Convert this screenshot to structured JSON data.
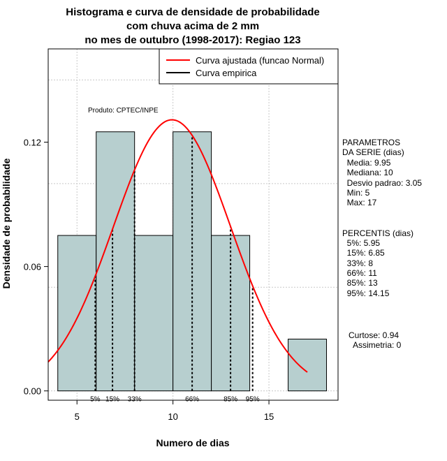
{
  "chart_data": {
    "type": "histogram",
    "title_lines": [
      "Histograma e curva de densidade de probabilidade",
      "com chuva acima de 2 mm",
      "no mes de outubro (1998-2017): Regiao 123"
    ],
    "xlabel": "Numero de dias",
    "ylabel": "Densidade de probabilidade",
    "xlim": [
      3.5,
      18.6
    ],
    "ylim": [
      -0.0045,
      0.165
    ],
    "x_ticks": [
      5,
      10,
      15
    ],
    "y_ticks": [
      0.0,
      0.06,
      0.12
    ],
    "y_tick_labels": [
      "0.00",
      "0.06",
      "0.12"
    ],
    "grid_x": [
      5,
      10,
      15
    ],
    "grid_y": [
      0.0,
      0.05,
      0.1,
      0.15
    ],
    "bins": [
      {
        "x0": 4,
        "x1": 6,
        "density": 0.075
      },
      {
        "x0": 6,
        "x1": 8,
        "density": 0.125
      },
      {
        "x0": 8,
        "x1": 10,
        "density": 0.075
      },
      {
        "x0": 10,
        "x1": 12,
        "density": 0.125
      },
      {
        "x0": 12,
        "x1": 14,
        "density": 0.075
      },
      {
        "x0": 14,
        "x1": 16,
        "density": 0.0
      },
      {
        "x0": 16,
        "x1": 18,
        "density": 0.025
      }
    ],
    "bar_color": "#b7cfcf",
    "curve_color": "#ff0000",
    "normal_fit": {
      "mean": 9.95,
      "sd": 3.05,
      "x_from": 3.5,
      "x_to": 17
    },
    "percentile_lines": [
      {
        "label": "5%",
        "x": 5.95
      },
      {
        "label": "15%",
        "x": 6.85
      },
      {
        "label": "33%",
        "x": 8
      },
      {
        "label": "66%",
        "x": 11
      },
      {
        "label": "85%",
        "x": 13
      },
      {
        "label": "95%",
        "x": 14.15
      }
    ],
    "legend": {
      "position": "top-right",
      "entries": [
        {
          "label": "Curva ajustada (funcao Normal)",
          "color": "#ff0000"
        },
        {
          "label": "Curva empirica",
          "color": "#000000"
        }
      ]
    },
    "annotation": "Produto: CPTEC/INPE",
    "params_block": [
      "PARAMETROS",
      "DA SERIE (dias)",
      "  Media: 9.95",
      "  Mediana: 10",
      "  Desvio padrao: 3.05",
      "  Min: 5",
      "  Max: 17"
    ],
    "percentis_block": [
      "PERCENTIS (dias)",
      "  5%: 5.95",
      "  15%: 6.85",
      "  33%: 8",
      "  66%: 11",
      "  85%: 13",
      "  95%: 14.15"
    ],
    "shape_block": [
      "Curtose: 0.94",
      "  Assimetria: 0"
    ]
  }
}
